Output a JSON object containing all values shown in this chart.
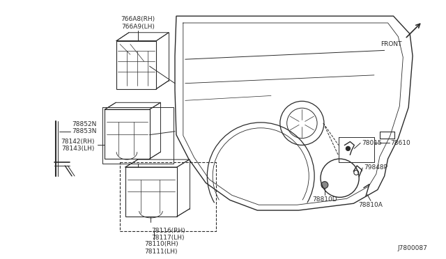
{
  "bg_color": "#ffffff",
  "diagram_id": "J7800087",
  "front_label": "FRONT",
  "line_color": "#2a2a2a",
  "text_color": "#2a2a2a",
  "font_size": 6.5,
  "parts_labels": {
    "766A8": "766A8(RH)\n766A9(LH)",
    "78852": "78852N\n78853N",
    "78142": "78142(RH)\n78143(LH)",
    "78116": "78116(RH)\n78117(LH)",
    "78110": "78110(RH)\n78111(LH)",
    "78015": "78015",
    "78610": "78610",
    "79848": "79848P",
    "78810D": "78810D",
    "78810A": "78810A"
  }
}
